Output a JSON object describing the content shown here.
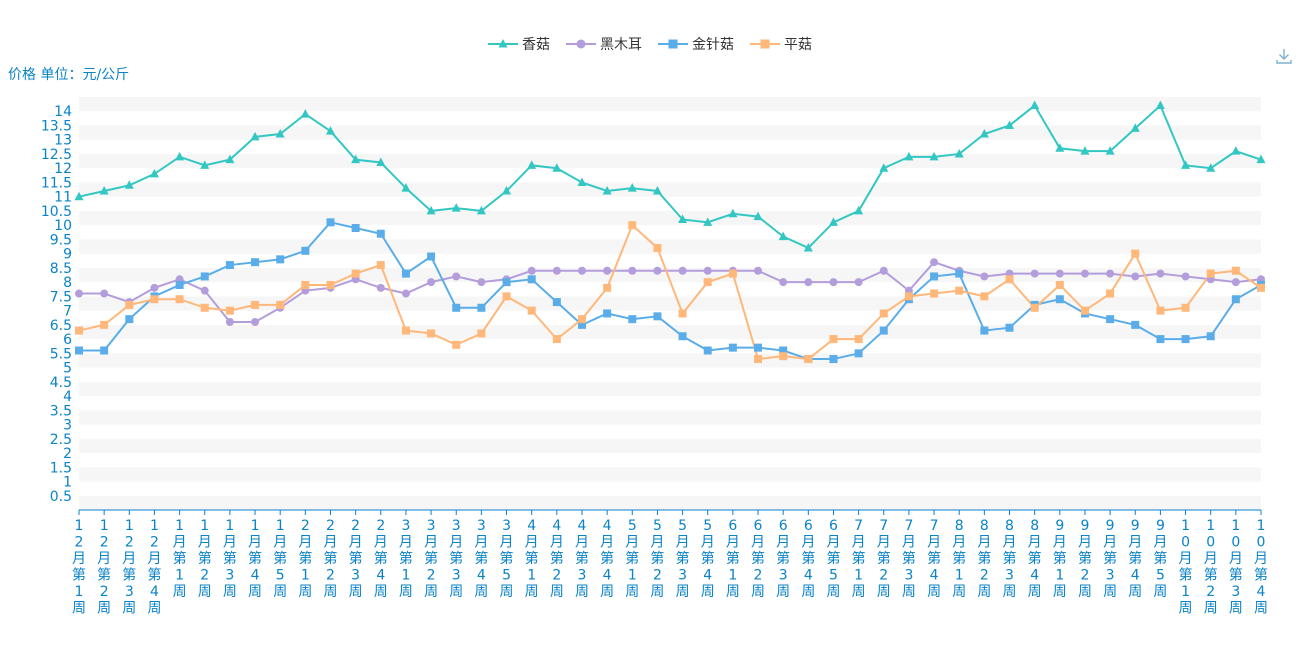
{
  "y_unit_label": "价格 单位：元/公斤",
  "toolbox": {
    "download_icon": "download-icon"
  },
  "colors": {
    "axis_text": "#0a83c7",
    "band_a": "#f6f6f6",
    "band_b": "#ffffff"
  },
  "chart_data": {
    "type": "line",
    "ylim": [
      0,
      14.5
    ],
    "yticks": [
      "0.5",
      "1",
      "1.5",
      "2",
      "2.5",
      "3",
      "3.5",
      "4",
      "4.5",
      "5",
      "5.5",
      "6",
      "6.5",
      "7",
      "7.5",
      "8",
      "8.5",
      "9",
      "9.5",
      "10",
      "10.5",
      "11",
      "11.5",
      "12",
      "12.5",
      "13",
      "13.5",
      "14"
    ],
    "ytick_values": [
      0.5,
      1,
      1.5,
      2,
      2.5,
      3,
      3.5,
      4,
      4.5,
      5,
      5.5,
      6,
      6.5,
      7,
      7.5,
      8,
      8.5,
      9,
      9.5,
      10,
      10.5,
      11,
      11.5,
      12,
      12.5,
      13,
      13.5,
      14
    ],
    "categories": [
      "12月第1周",
      "12月第2周",
      "12月第3周",
      "12月第4周",
      "1月第1周",
      "1月第2周",
      "1月第3周",
      "1月第4周",
      "1月第5周",
      "2月第1周",
      "2月第2周",
      "2月第3周",
      "2月第4周",
      "3月第1周",
      "3月第2周",
      "3月第3周",
      "3月第4周",
      "3月第5周",
      "4月第1周",
      "4月第2周",
      "4月第3周",
      "4月第4周",
      "5月第1周",
      "5月第2周",
      "5月第3周",
      "5月第4周",
      "6月第1周",
      "6月第2周",
      "6月第3周",
      "6月第4周",
      "6月第5周",
      "7月第1周",
      "7月第2周",
      "7月第3周",
      "7月第4周",
      "8月第1周",
      "8月第2周",
      "8月第3周",
      "8月第4周",
      "9月第1周",
      "9月第2周",
      "9月第3周",
      "9月第4周",
      "9月第5周",
      "10月第1周",
      "10月第2周",
      "10月第3周",
      "10月第4周"
    ],
    "series": [
      {
        "name": "香菇",
        "color": "#33c7c3",
        "marker": "triangle",
        "values": [
          11.0,
          11.2,
          11.4,
          11.8,
          12.4,
          12.1,
          12.3,
          13.1,
          13.2,
          13.9,
          13.3,
          12.3,
          12.2,
          11.3,
          10.5,
          10.6,
          10.5,
          11.2,
          12.1,
          12.0,
          11.5,
          11.2,
          11.3,
          11.2,
          10.2,
          10.1,
          10.4,
          10.3,
          9.6,
          9.2,
          10.1,
          10.5,
          12.0,
          12.4,
          12.4,
          12.5,
          13.2,
          13.5,
          14.2,
          12.7,
          12.6,
          12.6,
          13.4,
          14.2,
          12.1,
          12.0,
          12.6,
          12.3
        ]
      },
      {
        "name": "黑木耳",
        "color": "#b39ddb",
        "marker": "circle",
        "values": [
          7.6,
          7.6,
          7.3,
          7.8,
          8.1,
          7.7,
          6.6,
          6.6,
          7.1,
          7.7,
          7.8,
          8.1,
          7.8,
          7.6,
          8.0,
          8.2,
          8.0,
          8.1,
          8.4,
          8.4,
          8.4,
          8.4,
          8.4,
          8.4,
          8.4,
          8.4,
          8.4,
          8.4,
          8.0,
          8.0,
          8.0,
          8.0,
          8.4,
          7.7,
          8.7,
          8.4,
          8.2,
          8.3,
          8.3,
          8.3,
          8.3,
          8.3,
          8.2,
          8.3,
          8.2,
          8.1,
          8.0,
          8.1
        ]
      },
      {
        "name": "金针菇",
        "color": "#5aade8",
        "marker": "square",
        "values": [
          5.6,
          5.6,
          6.7,
          7.5,
          7.9,
          8.2,
          8.6,
          8.7,
          8.8,
          9.1,
          10.1,
          9.9,
          9.7,
          8.3,
          8.9,
          7.1,
          7.1,
          8.0,
          8.1,
          7.3,
          6.5,
          6.9,
          6.7,
          6.8,
          6.1,
          5.6,
          5.7,
          5.7,
          5.6,
          5.3,
          5.3,
          5.5,
          6.3,
          7.4,
          8.2,
          8.3,
          6.3,
          6.4,
          7.2,
          7.4,
          6.9,
          6.7,
          6.5,
          6.0,
          6.0,
          6.1,
          7.4,
          7.9
        ]
      },
      {
        "name": "平菇",
        "color": "#ffb77a",
        "marker": "square",
        "values": [
          6.3,
          6.5,
          7.2,
          7.4,
          7.4,
          7.1,
          7.0,
          7.2,
          7.2,
          7.9,
          7.9,
          8.3,
          8.6,
          6.3,
          6.2,
          5.8,
          6.2,
          7.5,
          7.0,
          6.0,
          6.7,
          7.8,
          10.0,
          9.2,
          6.9,
          8.0,
          8.3,
          5.3,
          5.4,
          5.3,
          6.0,
          6.0,
          6.9,
          7.5,
          7.6,
          7.7,
          7.5,
          8.1,
          7.1,
          7.9,
          7.0,
          7.6,
          9.0,
          7.0,
          7.1,
          8.3,
          8.4,
          7.8
        ]
      }
    ],
    "legend_position": "top-center",
    "grid": "horizontal bands"
  }
}
